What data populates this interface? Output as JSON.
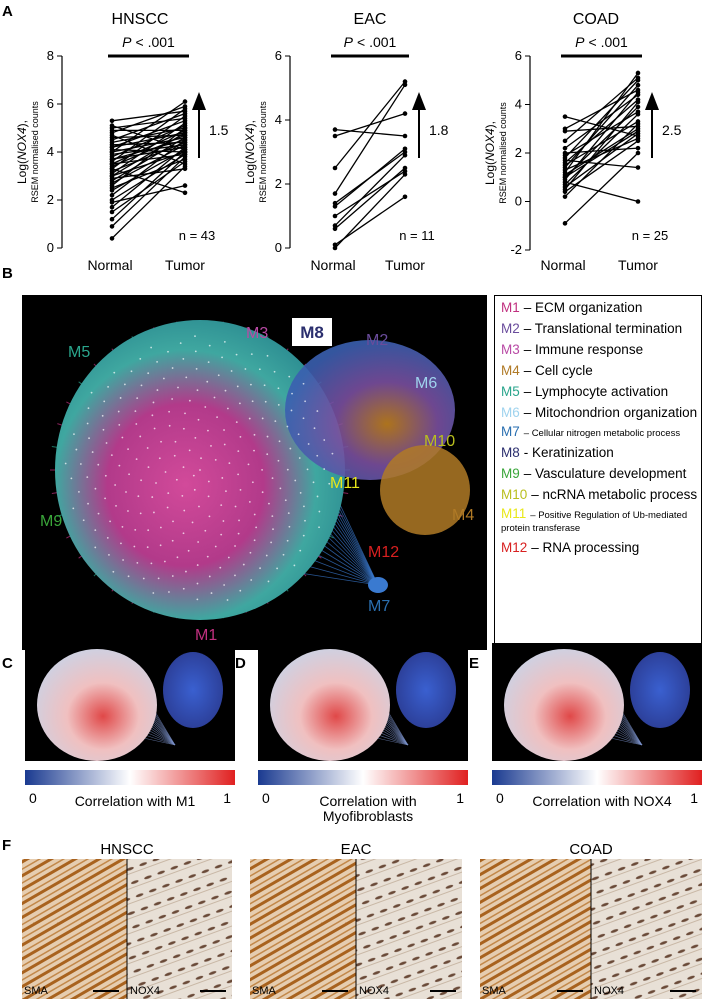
{
  "panel_a": {
    "label": "A",
    "charts": [
      {
        "title": "HNSCC",
        "p_symbol": "P",
        "p_text": "< .001",
        "ylabel_prefix": "Log(",
        "ylabel_gene": "NOX4",
        "ylabel_suffix": "),",
        "ylabel_sub": "RSEM normalised counts",
        "categories": [
          "Normal",
          "Tumor"
        ],
        "fold_change": 1.5,
        "n_label": "n = 43",
        "ylim": [
          0,
          8
        ],
        "yticks": [
          0,
          2,
          4,
          6,
          8
        ],
        "normal": [
          0.4,
          0.9,
          1.2,
          1.5,
          1.7,
          1.9,
          2.0,
          2.2,
          2.4,
          2.5,
          2.6,
          2.7,
          2.8,
          2.9,
          3.0,
          3.0,
          3.1,
          3.2,
          3.3,
          3.3,
          3.4,
          3.5,
          3.5,
          3.6,
          3.7,
          3.7,
          3.8,
          3.9,
          4.0,
          4.0,
          4.1,
          4.2,
          4.2,
          4.3,
          4.4,
          4.5,
          4.6,
          4.7,
          4.8,
          4.9,
          5.0,
          5.1,
          5.3
        ],
        "tumor": [
          3.4,
          3.8,
          4.0,
          3.6,
          4.2,
          2.6,
          3.9,
          4.5,
          4.1,
          3.7,
          5.0,
          4.3,
          4.6,
          3.3,
          4.8,
          4.0,
          5.2,
          4.4,
          2.3,
          5.5,
          4.7,
          3.9,
          4.9,
          5.8,
          4.2,
          4.5,
          5.1,
          4.3,
          6.1,
          4.6,
          4.0,
          5.3,
          4.8,
          4.4,
          5.0,
          5.6,
          4.7,
          3.5,
          5.9,
          4.9,
          5.4,
          4.1,
          5.7
        ]
      },
      {
        "title": "EAC",
        "p_symbol": "P",
        "p_text": "< .001",
        "ylabel_prefix": "Log(",
        "ylabel_gene": "NOX4",
        "ylabel_suffix": "),",
        "ylabel_sub": "RSEM normalised counts",
        "categories": [
          "Normal",
          "Tumor"
        ],
        "fold_change": 1.8,
        "n_label": "n = 11",
        "ylim": [
          0,
          6
        ],
        "yticks": [
          0,
          2,
          4,
          6
        ],
        "normal": [
          0.0,
          0.1,
          0.6,
          0.7,
          1.0,
          1.3,
          1.4,
          1.7,
          2.5,
          3.5,
          3.7
        ],
        "tumor": [
          2.3,
          1.6,
          2.5,
          2.9,
          2.4,
          3.1,
          3.0,
          5.1,
          5.2,
          4.2,
          3.5
        ]
      },
      {
        "title": "COAD",
        "p_symbol": "P",
        "p_text": "< .001",
        "ylabel_prefix": "Log(",
        "ylabel_gene": "NOX4",
        "ylabel_suffix": "),",
        "ylabel_sub": "RSEM normalised counts",
        "categories": [
          "Normal",
          "Tumor"
        ],
        "fold_change": 2.5,
        "n_label": "n = 25",
        "ylim": [
          -2,
          6
        ],
        "yticks": [
          -2,
          0,
          2,
          4,
          6
        ],
        "normal": [
          -0.9,
          0.2,
          0.4,
          0.5,
          0.6,
          0.7,
          0.8,
          0.9,
          1.0,
          1.0,
          1.1,
          1.2,
          1.3,
          1.4,
          1.5,
          1.6,
          1.7,
          1.8,
          1.9,
          2.0,
          2.2,
          2.5,
          2.9,
          3.0,
          3.5
        ],
        "tumor": [
          2.0,
          3.2,
          2.5,
          4.1,
          2.8,
          3.6,
          0.0,
          4.5,
          2.9,
          3.9,
          3.0,
          5.3,
          2.6,
          4.8,
          3.3,
          4.2,
          1.4,
          5.0,
          3.7,
          2.2,
          4.4,
          5.1,
          3.1,
          4.6,
          2.7
        ]
      }
    ]
  },
  "panel_b": {
    "label": "B",
    "modules": [
      {
        "code": "M1",
        "color": "#c0307f",
        "desc": "– ECM organization",
        "small": false
      },
      {
        "code": "M2",
        "color": "#6a4c9c",
        "desc": "– Translational termination",
        "small": false
      },
      {
        "code": "M3",
        "color": "#b94aa5",
        "desc": "– Immune response",
        "small": false
      },
      {
        "code": "M4",
        "color": "#b07a26",
        "desc": "– Cell cycle",
        "small": false
      },
      {
        "code": "M5",
        "color": "#2aa58c",
        "desc": "– Lymphocyte activation",
        "small": false
      },
      {
        "code": "M6",
        "color": "#9fd3ee",
        "desc": "– Mitochondrion organization",
        "small": false
      },
      {
        "code": "M7",
        "color": "#2a6fb0",
        "desc": "– Cellular nitrogen metabolic process",
        "small": true
      },
      {
        "code": "M8",
        "color": "#2b2f6e",
        "desc": "- Keratinization",
        "small": false
      },
      {
        "code": "M9",
        "color": "#3aa63a",
        "desc": "– Vasculature development",
        "small": false
      },
      {
        "code": "M10",
        "color": "#b9bf1e",
        "desc": "– ncRNA metabolic process",
        "small": false
      },
      {
        "code": "M11",
        "color": "#e8e81a",
        "desc": "– Positive Regulation of Ub-mediated protein transferase",
        "small": true
      },
      {
        "code": "M12",
        "color": "#d82020",
        "desc": "– RNA processing",
        "small": false
      }
    ]
  },
  "panels_cde": [
    {
      "label": "C",
      "scale_min": 0,
      "scale_max": 1,
      "caption": [
        "Correlation with M1"
      ]
    },
    {
      "label": "D",
      "scale_min": 0,
      "scale_max": 1,
      "caption": [
        "Correlation with",
        "Myofibroblasts"
      ]
    },
    {
      "label": "E",
      "scale_min": 0,
      "scale_max": 1,
      "caption": [
        "Correlation with NOX4"
      ]
    }
  ],
  "panel_f": {
    "label": "F",
    "samples": [
      {
        "title": "HNSCC",
        "left": "SMA",
        "right": "NOX4"
      },
      {
        "title": "EAC",
        "left": "SMA",
        "right": "NOX4"
      },
      {
        "title": "COAD",
        "left": "SMA",
        "right": "NOX4"
      }
    ]
  }
}
